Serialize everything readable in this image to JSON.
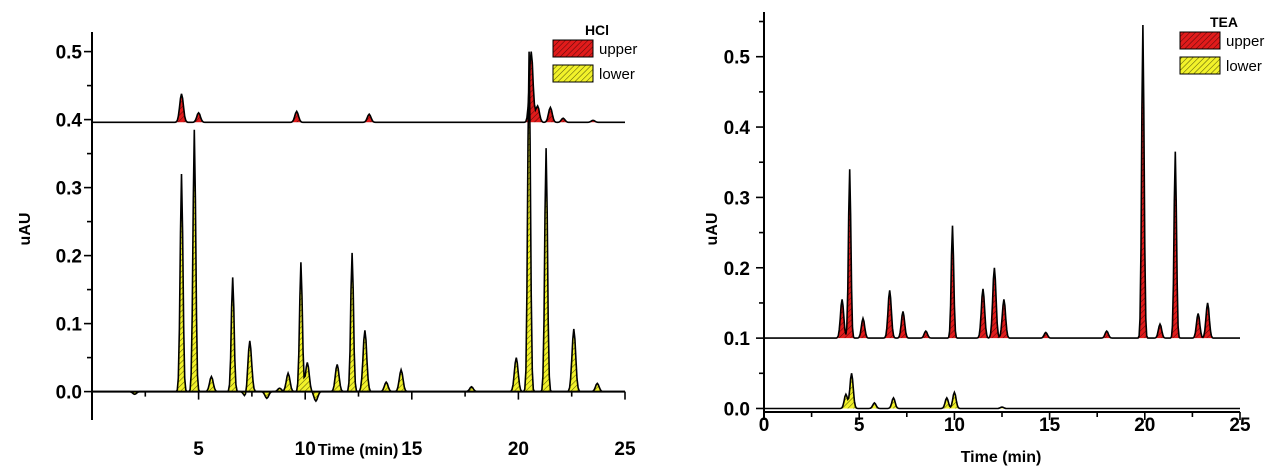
{
  "chart_data": [
    {
      "type": "area",
      "legend_title": "HCl",
      "xlabel": "Time  (min)",
      "ylabel": "uAU",
      "xlim": [
        0,
        25
      ],
      "ylim": [
        -0.03,
        0.52
      ],
      "xticks": [
        5,
        10,
        15,
        20,
        25
      ],
      "yticks": [
        0.0,
        0.1,
        0.2,
        0.3,
        0.4,
        0.5
      ],
      "legend_position": "top-right",
      "series": [
        {
          "name": "upper",
          "color": "#e11b1b",
          "hatch": "diagonal",
          "baseline": 0.396,
          "peaks": [
            [
              4.2,
              0.438
            ],
            [
              5.0,
              0.41
            ],
            [
              9.6,
              0.412
            ],
            [
              13.0,
              0.408
            ],
            [
              20.6,
              0.5
            ],
            [
              20.9,
              0.42
            ],
            [
              21.5,
              0.418
            ],
            [
              22.1,
              0.402
            ],
            [
              23.5,
              0.399
            ]
          ]
        },
        {
          "name": "lower",
          "color": "#f2f22a",
          "hatch": "diagonal",
          "baseline": 0.0,
          "peaks": [
            [
              2.0,
              -0.004
            ],
            [
              4.2,
              0.32
            ],
            [
              4.8,
              0.385
            ],
            [
              5.6,
              0.022
            ],
            [
              6.6,
              0.168
            ],
            [
              7.2,
              -0.008
            ],
            [
              7.4,
              0.075
            ],
            [
              8.2,
              -0.01
            ],
            [
              8.8,
              0.005
            ],
            [
              9.2,
              0.027
            ],
            [
              9.8,
              0.19
            ],
            [
              10.1,
              0.043
            ],
            [
              10.5,
              -0.014
            ],
            [
              11.5,
              0.04
            ],
            [
              12.2,
              0.204
            ],
            [
              12.8,
              0.09
            ],
            [
              13.8,
              0.014
            ],
            [
              14.5,
              0.032
            ],
            [
              17.8,
              0.007
            ],
            [
              19.9,
              0.05
            ],
            [
              20.5,
              0.5
            ],
            [
              21.3,
              0.358
            ],
            [
              22.6,
              0.092
            ],
            [
              23.7,
              0.012
            ]
          ]
        }
      ]
    },
    {
      "type": "area",
      "legend_title": "TEA",
      "xlabel": "Time  (min)",
      "ylabel": "uAU",
      "xlim": [
        0,
        25
      ],
      "ylim": [
        -0.005,
        0.555
      ],
      "xticks": [
        0,
        5,
        10,
        15,
        20,
        25
      ],
      "yticks": [
        0.0,
        0.1,
        0.2,
        0.3,
        0.4,
        0.5
      ],
      "legend_position": "top-right",
      "series": [
        {
          "name": "upper",
          "color": "#e11b1b",
          "hatch": "diagonal",
          "baseline": 0.1,
          "peaks": [
            [
              4.1,
              0.155
            ],
            [
              4.5,
              0.34
            ],
            [
              5.2,
              0.128
            ],
            [
              6.6,
              0.168
            ],
            [
              7.3,
              0.138
            ],
            [
              8.5,
              0.11
            ],
            [
              9.9,
              0.26
            ],
            [
              11.5,
              0.17
            ],
            [
              12.1,
              0.2
            ],
            [
              12.6,
              0.155
            ],
            [
              14.8,
              0.108
            ],
            [
              18.0,
              0.11
            ],
            [
              19.9,
              0.545
            ],
            [
              20.8,
              0.12
            ],
            [
              21.6,
              0.365
            ],
            [
              22.8,
              0.135
            ],
            [
              23.3,
              0.15
            ]
          ]
        },
        {
          "name": "lower",
          "color": "#f2f22a",
          "hatch": "diagonal",
          "baseline": 0.0,
          "peaks": [
            [
              4.3,
              0.02
            ],
            [
              4.6,
              0.05
            ],
            [
              5.8,
              0.008
            ],
            [
              6.8,
              0.015
            ],
            [
              9.6,
              0.015
            ],
            [
              10.0,
              0.023
            ],
            [
              12.5,
              0.002
            ]
          ]
        }
      ]
    }
  ]
}
